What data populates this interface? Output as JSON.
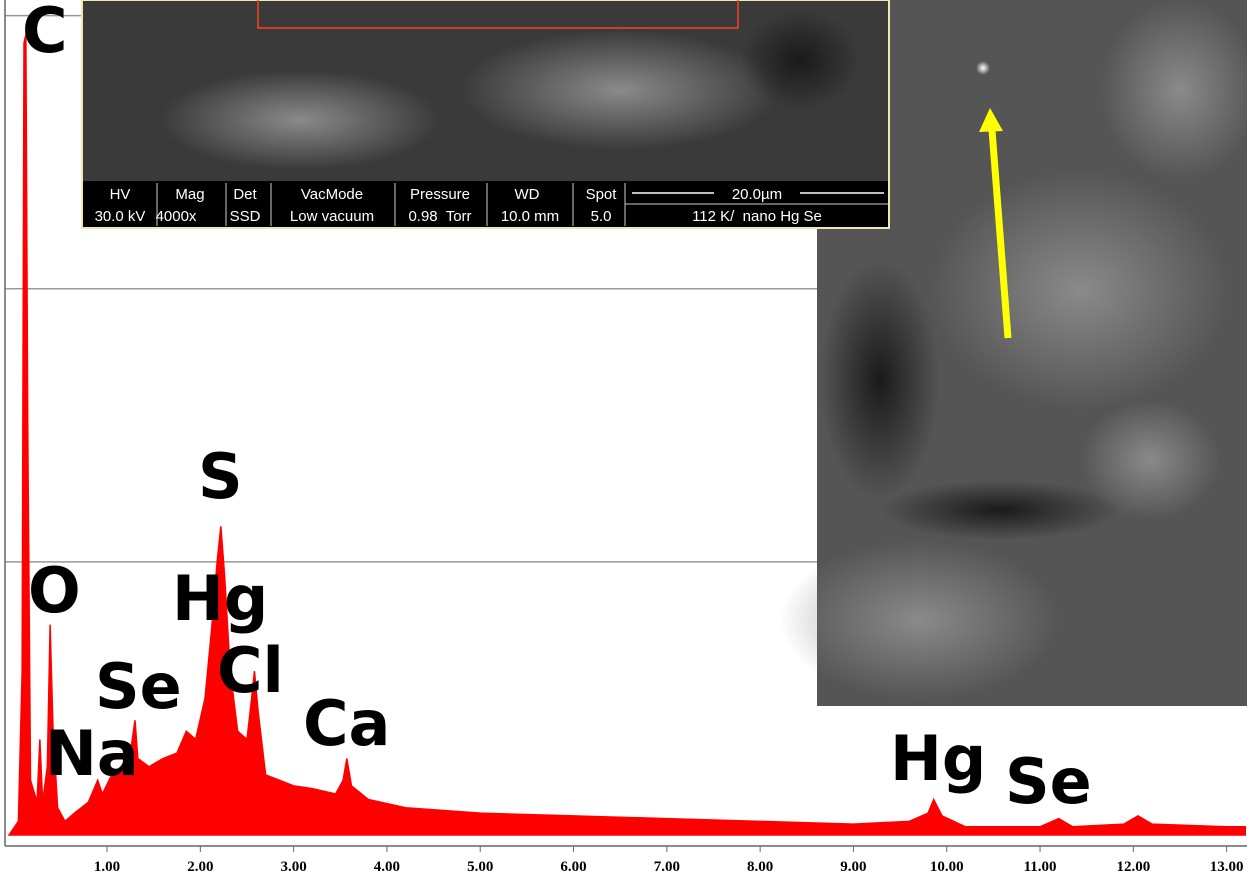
{
  "chart_data": {
    "type": "area",
    "x": [
      -0.05,
      0.05,
      0.09,
      0.11,
      0.13,
      0.15,
      0.18,
      0.25,
      0.28,
      0.31,
      0.36,
      0.39,
      0.42,
      0.47,
      0.55,
      0.65,
      0.8,
      0.9,
      0.95,
      1.05,
      1.15,
      1.25,
      1.3,
      1.33,
      1.45,
      1.6,
      1.75,
      1.85,
      1.95,
      2.05,
      2.12,
      2.18,
      2.22,
      2.26,
      2.32,
      2.4,
      2.5,
      2.55,
      2.58,
      2.62,
      2.7,
      2.85,
      3.0,
      3.2,
      3.45,
      3.53,
      3.57,
      3.62,
      3.8,
      4.2,
      5,
      6,
      7,
      8,
      9,
      9.6,
      9.8,
      9.86,
      9.95,
      10.2,
      11,
      11.2,
      11.35,
      11.9,
      12.05,
      12.2,
      13,
      13.2
    ],
    "values": [
      0,
      0.05,
      0.6,
      2.9,
      2.93,
      1.5,
      0.2,
      0.12,
      0.35,
      0.12,
      0.25,
      0.77,
      0.4,
      0.1,
      0.05,
      0.08,
      0.12,
      0.2,
      0.15,
      0.22,
      0.25,
      0.3,
      0.42,
      0.28,
      0.25,
      0.28,
      0.3,
      0.38,
      0.35,
      0.5,
      0.75,
      1.0,
      1.13,
      0.95,
      0.6,
      0.38,
      0.35,
      0.5,
      0.6,
      0.45,
      0.22,
      0.2,
      0.18,
      0.17,
      0.15,
      0.2,
      0.28,
      0.18,
      0.13,
      0.1,
      0.08,
      0.07,
      0.06,
      0.05,
      0.04,
      0.05,
      0.08,
      0.13,
      0.07,
      0.03,
      0.03,
      0.06,
      0.03,
      0.04,
      0.07,
      0.04,
      0.03,
      0.03
    ],
    "color": "#ff0000",
    "xlim": [
      -0.1,
      13.2
    ],
    "ylim": [
      0,
      3.05
    ],
    "grid_lines": [
      1,
      2,
      3
    ],
    "xticks": [
      {
        "value": 1,
        "label": "1.00"
      },
      {
        "value": 2,
        "label": "2.00"
      },
      {
        "value": 3,
        "label": "3.00"
      },
      {
        "value": 4,
        "label": "4.00"
      },
      {
        "value": 5,
        "label": "5.00"
      },
      {
        "value": 6,
        "label": "6.00"
      },
      {
        "value": 7,
        "label": "7.00"
      },
      {
        "value": 8,
        "label": "8.00"
      },
      {
        "value": 9,
        "label": "9.00"
      },
      {
        "value": 10,
        "label": "10.00"
      },
      {
        "value": 11,
        "label": "11.00"
      },
      {
        "value": 12,
        "label": "12.00"
      },
      {
        "value": 13,
        "label": "13.00"
      }
    ],
    "annotations": [
      "C",
      "O",
      "Na",
      "Se",
      "S",
      "Hg",
      "Cl",
      "Ca",
      "Hg",
      "Se"
    ]
  },
  "sem_image": {
    "header_row": [
      "HV",
      "Mag",
      "Det",
      "VacMode",
      "Pressure",
      "WD",
      "Spot"
    ],
    "value_row": [
      "30.0 kV",
      "4000x",
      "SSD",
      "Low vacuum",
      "0.98  Torr",
      "10.0 mm",
      "5.0",
      "112 K/  nano Hg Se"
    ],
    "scale_bar": "20.0µm"
  }
}
